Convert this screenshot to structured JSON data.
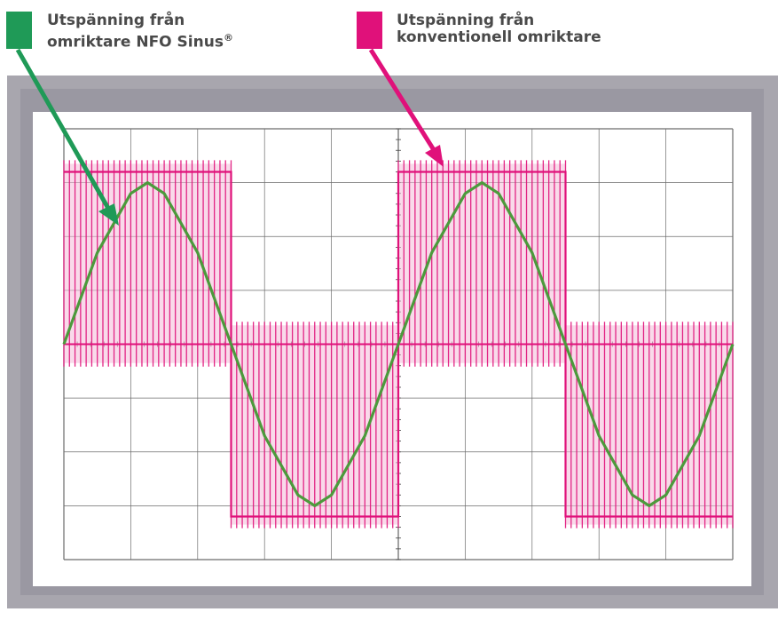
{
  "legend": {
    "nfo": {
      "line1": "Utspänning från",
      "line2": "omriktare NFO Sinus",
      "mark": "®",
      "color": "#1f9a57"
    },
    "conventional": {
      "line1": "Utspänning från",
      "line2": "konventionell omriktare",
      "color": "#e0117a"
    }
  },
  "chart_data": {
    "type": "line",
    "title": "",
    "xlabel": "",
    "ylabel": "",
    "grid": true,
    "grid_divisions": {
      "x": 10,
      "y": 8
    },
    "xlim": [
      0,
      10
    ],
    "ylim": [
      -4,
      4
    ],
    "series": [
      {
        "name": "Utspänning från omriktare NFO Sinus®",
        "color": "#4c9a3c",
        "x": [
          0,
          0.5,
          1,
          1.25,
          1.5,
          2,
          2.5,
          3,
          3.5,
          3.75,
          4,
          4.5,
          5,
          5.5,
          6,
          6.25,
          6.5,
          7,
          7.5,
          8,
          8.5,
          8.75,
          9,
          9.5,
          10
        ],
        "values": [
          0,
          1.7,
          2.8,
          3.0,
          2.8,
          1.7,
          0,
          -1.7,
          -2.8,
          -3.0,
          -2.8,
          -1.7,
          0,
          1.7,
          2.8,
          3.0,
          2.8,
          1.7,
          0,
          -1.7,
          -2.8,
          -3.0,
          -2.8,
          -1.7,
          0
        ]
      },
      {
        "name": "Utspänning från konventionell omriktare",
        "color": "#e0117a",
        "x": [
          0,
          2.5,
          2.5,
          5,
          5,
          7.5,
          7.5,
          10
        ],
        "values": [
          3.2,
          3.2,
          -3.2,
          -3.2,
          3.2,
          3.2,
          -3.2,
          -3.2
        ]
      }
    ]
  }
}
